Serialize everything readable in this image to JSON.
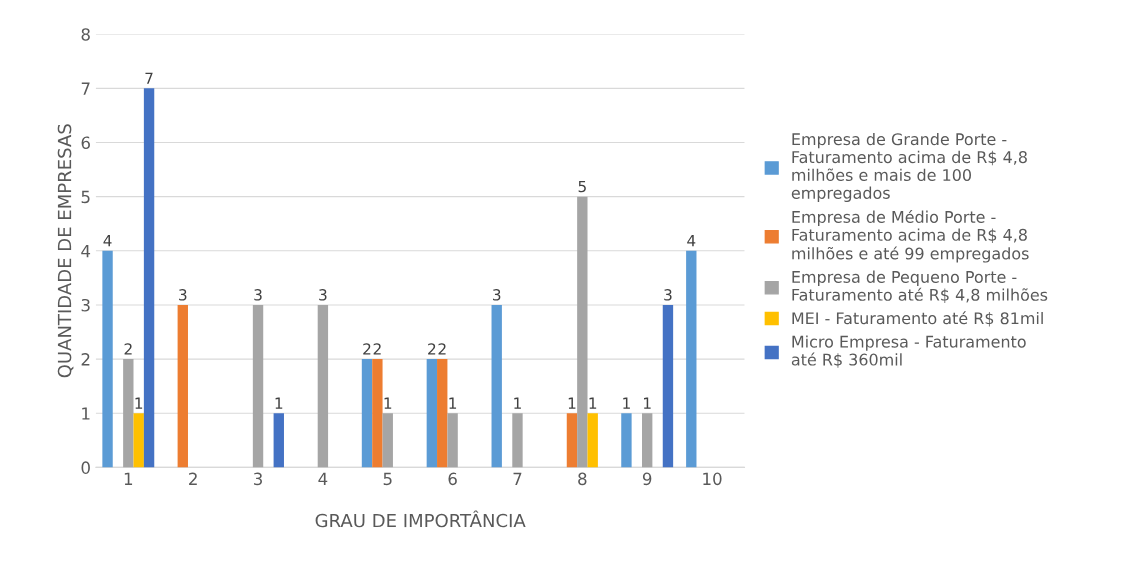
{
  "chart_data": {
    "type": "bar",
    "xlabel": "GRAU DE IMPORTÂNCIA",
    "ylabel": "QUANTIDADE DE EMPRESAS",
    "categories": [
      "1",
      "2",
      "3",
      "4",
      "5",
      "6",
      "7",
      "8",
      "9",
      "10"
    ],
    "series": [
      {
        "name": "Empresa de Grande Porte - Faturamento acima de R$ 4,8 milhões e mais de 100 empregados",
        "color": "#5b9bd5",
        "values": [
          4,
          null,
          null,
          null,
          2,
          2,
          3,
          null,
          1,
          4
        ]
      },
      {
        "name": "Empresa de Médio Porte - Faturamento acima de R$ 4,8 milhões e até 99 empregados",
        "color": "#ed7d31",
        "values": [
          null,
          3,
          null,
          null,
          2,
          2,
          null,
          1,
          null,
          null
        ]
      },
      {
        "name": "Empresa de Pequeno Porte - Faturamento até R$ 4,8 milhões",
        "color": "#a5a5a5",
        "values": [
          2,
          null,
          3,
          3,
          1,
          1,
          1,
          5,
          1,
          null
        ]
      },
      {
        "name": "MEI - Faturamento até R$ 81mil",
        "color": "#ffc000",
        "values": [
          1,
          null,
          null,
          null,
          null,
          null,
          null,
          1,
          null,
          null
        ]
      },
      {
        "name": "Micro Empresa - Faturamento até R$ 360mil",
        "color": "#4472c4",
        "values": [
          7,
          null,
          1,
          null,
          null,
          null,
          null,
          null,
          3,
          null
        ]
      }
    ],
    "ylim": [
      0,
      8
    ],
    "yticks": [
      0,
      1,
      2,
      3,
      4,
      5,
      6,
      7,
      8
    ],
    "grid": "y",
    "legend": "right",
    "data_labels": true
  }
}
